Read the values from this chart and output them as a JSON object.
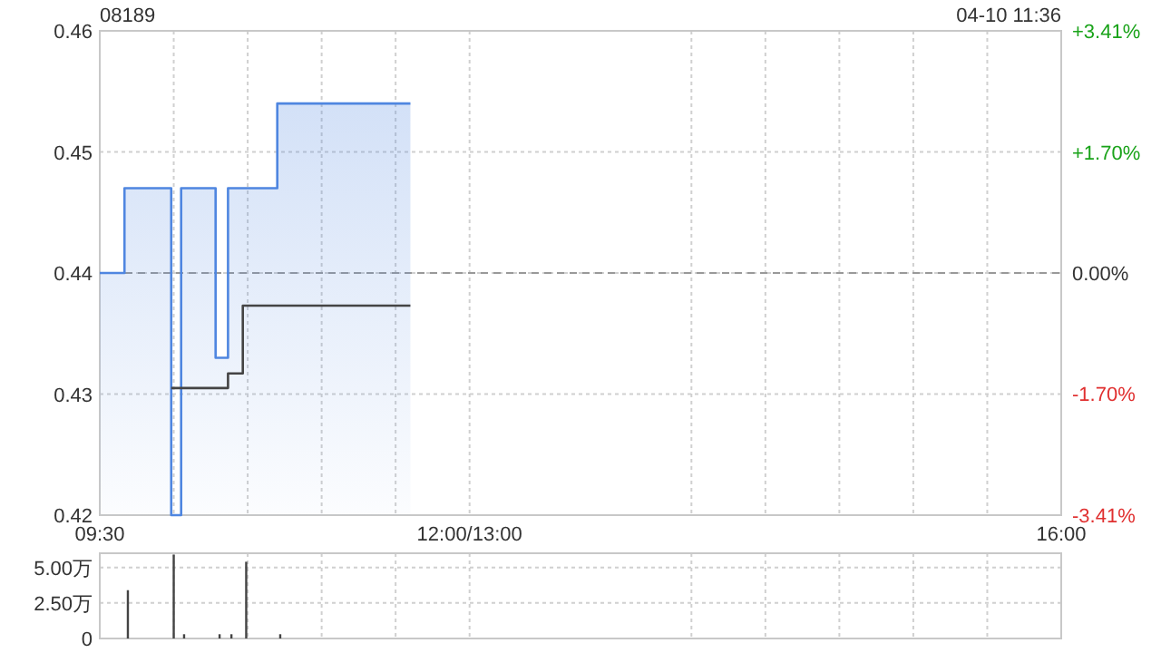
{
  "chart_data": [
    {
      "type": "step",
      "title": "08189",
      "annotations": [
        "04-10 11:36"
      ],
      "series": [
        {
          "type": "area",
          "color": "#4f86e0",
          "x": [
            9.5,
            9.667,
            9.983,
            10.05,
            10.283,
            10.367,
            10.7,
            11.6
          ],
          "values": [
            0.44,
            0.447,
            0.42,
            0.447,
            0.433,
            0.447,
            0.454,
            0.454
          ]
        },
        {
          "color": "#444444",
          "x": [
            9.983,
            10.367,
            10.467,
            11.6
          ],
          "values": [
            0.4305,
            0.4317,
            0.4373,
            0.4373
          ]
        }
      ],
      "xlim": [
        9.5,
        16
      ],
      "xticks": [
        {
          "value": 9.5,
          "label": "09:30"
        },
        {
          "value": 10,
          "label": null
        },
        {
          "value": 10.5,
          "label": null
        },
        {
          "value": 11,
          "label": null
        },
        {
          "value": 11.5,
          "label": null
        },
        {
          "value": 12,
          "label": "12:00/13:00"
        },
        {
          "value": 13.5,
          "label": null
        },
        {
          "value": 14,
          "label": null
        },
        {
          "value": 14.5,
          "label": null
        },
        {
          "value": 15,
          "label": null
        },
        {
          "value": 15.5,
          "label": null
        },
        {
          "value": 16,
          "label": "16:00"
        }
      ],
      "ylim": [
        0.42,
        0.46
      ],
      "yticks": [
        0.42,
        0.43,
        0.44,
        0.45,
        0.46
      ],
      "y2lim": [
        -3.41,
        3.41
      ],
      "y2ticks": [
        {
          "value": -3.41,
          "label": "-3.41%"
        },
        {
          "value": -1.7,
          "label": "-1.70%"
        },
        {
          "value": 0,
          "label": "0.00%"
        },
        {
          "value": 1.7,
          "label": "+1.70%"
        },
        {
          "value": 3.41,
          "label": "+3.41%"
        }
      ],
      "ref_lines": [
        {
          "axis": "y",
          "value": 0.44,
          "line_style": "dashed",
          "color": "#999999"
        }
      ],
      "grid": true
    },
    {
      "type": "bar",
      "tick_labels": "y",
      "series": [
        {
          "color": "#444444",
          "x": [
            9.69,
            10.0,
            10.07,
            10.31,
            10.39,
            10.49,
            10.72
          ],
          "values": [
            3.4,
            5.9,
            0.3,
            0.3,
            0.3,
            5.4,
            0.3
          ]
        }
      ],
      "xlim": [
        9.5,
        16
      ],
      "xticks": [
        {
          "value": 10,
          "label": null
        },
        {
          "value": 10.5,
          "label": null
        },
        {
          "value": 11,
          "label": null
        },
        {
          "value": 11.5,
          "label": null
        },
        {
          "value": 12,
          "label": null
        },
        {
          "value": 13.5,
          "label": null
        },
        {
          "value": 14,
          "label": null
        },
        {
          "value": 14.5,
          "label": null
        },
        {
          "value": 15,
          "label": null
        },
        {
          "value": 15.5,
          "label": null
        }
      ],
      "ylim": [
        0,
        6
      ],
      "yticks": [
        0,
        {
          "value": 2.5,
          "label": "2.50万"
        },
        {
          "value": 5,
          "label": "5.00万"
        }
      ],
      "grid": true
    }
  ]
}
